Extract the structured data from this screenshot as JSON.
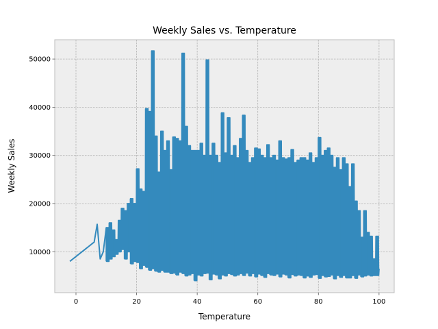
{
  "chart_data": {
    "type": "line",
    "title": "Weekly Sales vs. Temperature",
    "xlabel": "Temperature",
    "ylabel": "Weekly Sales",
    "xlim": [
      -7,
      105
    ],
    "ylim": [
      1500,
      54000
    ],
    "xticks": [
      0,
      20,
      40,
      60,
      80,
      100
    ],
    "yticks": [
      10000,
      20000,
      30000,
      40000,
      50000
    ],
    "grid": true,
    "series": [
      {
        "color": "#348abd",
        "x": [
          -2,
          6,
          7,
          8,
          9,
          10,
          11,
          12,
          13,
          14,
          15,
          16,
          17,
          18,
          19,
          20,
          21,
          22,
          23,
          24,
          25,
          26,
          27,
          28,
          29,
          30,
          31,
          32,
          33,
          34,
          35,
          36,
          37,
          38,
          39,
          40,
          41,
          42,
          43,
          44,
          45,
          46,
          47,
          48,
          49,
          50,
          51,
          52,
          53,
          54,
          55,
          56,
          57,
          58,
          59,
          60,
          61,
          62,
          63,
          64,
          65,
          66,
          67,
          68,
          69,
          70,
          71,
          72,
          73,
          74,
          75,
          76,
          77,
          78,
          79,
          80,
          81,
          82,
          83,
          84,
          85,
          86,
          87,
          88,
          89,
          90,
          91,
          92,
          93,
          94,
          95,
          96,
          97,
          98,
          99,
          100
        ],
        "max": [
          8000,
          12000,
          15700,
          8500,
          10000,
          15000,
          16000,
          14500,
          12500,
          16500,
          19000,
          18500,
          20000,
          21000,
          20000,
          27200,
          23000,
          22500,
          39700,
          39100,
          51700,
          34000,
          26500,
          35000,
          31000,
          33000,
          27000,
          33800,
          33500,
          33000,
          51200,
          36000,
          32000,
          31000,
          31000,
          31000,
          32500,
          30000,
          49800,
          30000,
          32500,
          30000,
          28500,
          38800,
          30500,
          37800,
          30000,
          32000,
          29500,
          33500,
          38300,
          31000,
          28500,
          29500,
          31500,
          31300,
          30000,
          29500,
          32200,
          29500,
          30000,
          29000,
          33000,
          29500,
          29200,
          29500,
          31200,
          28500,
          29000,
          29500,
          29500,
          29000,
          30500,
          28500,
          29500,
          33700,
          30000,
          31000,
          31500,
          30000,
          27500,
          29500,
          27000,
          29500,
          28200,
          23500,
          28200,
          20500,
          18500,
          13000,
          18500,
          14000,
          13200,
          8500,
          13200,
          6500
        ],
        "min": [
          8000,
          12000,
          15700,
          8500,
          10000,
          8000,
          8500,
          9000,
          9500,
          10000,
          10500,
          8500,
          10000,
          7500,
          8000,
          7800,
          6500,
          7200,
          6800,
          6200,
          6500,
          6000,
          5800,
          6200,
          5800,
          5800,
          5500,
          5600,
          5200,
          5800,
          5500,
          5000,
          5200,
          5500,
          4000,
          5200,
          5000,
          5500,
          5600,
          4200,
          5400,
          5200,
          4400,
          5200,
          5000,
          5500,
          5300,
          5000,
          5200,
          5500,
          5100,
          5600,
          5000,
          5500,
          4800,
          5400,
          5100,
          4700,
          5500,
          5200,
          5100,
          5400,
          4800,
          5400,
          5200,
          4600,
          5300,
          5000,
          5200,
          5100,
          4600,
          5000,
          4700,
          5200,
          5300,
          4500,
          5100,
          4800,
          4900,
          5200,
          4400,
          5100,
          4700,
          5100,
          4600,
          4600,
          5100,
          4500,
          5200,
          4800,
          5000,
          5200,
          5000,
          5100,
          5100,
          6500
        ]
      }
    ]
  }
}
